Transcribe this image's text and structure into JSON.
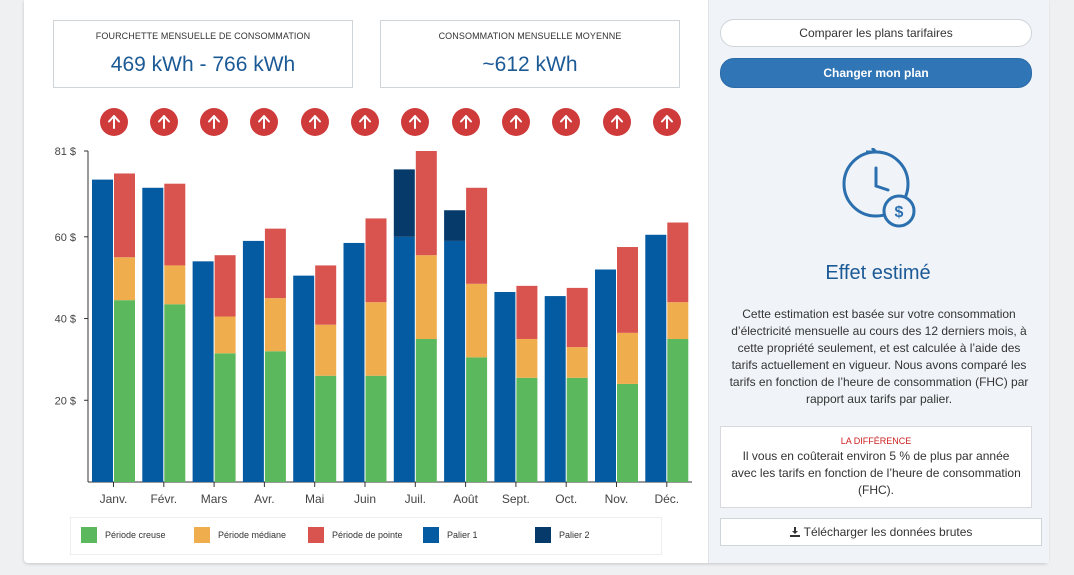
{
  "stats": {
    "range_label": "Fourchette mensuelle de consommation",
    "range_value": "469 kWh - 766 kWh",
    "avg_label": "Consommation mensuelle moyenne",
    "avg_value": "~612 kWh"
  },
  "colors": {
    "off_peak": "#5cb85c",
    "mid_peak": "#f0ad4e",
    "on_peak": "#d9534f",
    "tier1": "#045ba1",
    "tier2": "#053a6b",
    "accent": "#1c5a96",
    "arrow_badge": "#cf3b3b"
  },
  "chart_data": {
    "type": "bar",
    "title": "",
    "ylabel": "",
    "xlabel": "",
    "ylim": [
      0,
      81
    ],
    "yticks": [
      20,
      40,
      60,
      81
    ],
    "ytick_labels": [
      "20 $",
      "40 $",
      "60 $",
      "81 $"
    ],
    "categories": [
      "Janv.",
      "Févr.",
      "Mars",
      "Avr.",
      "Mai",
      "Juin",
      "Juil.",
      "Août",
      "Sept.",
      "Oct.",
      "Nov.",
      "Déc."
    ],
    "series_tiered": [
      {
        "name": "Palier 1",
        "values": [
          74,
          72,
          54,
          59,
          50.5,
          58.5,
          60,
          59,
          46.5,
          45.5,
          52,
          60.5
        ]
      },
      {
        "name": "Palier 2",
        "values": [
          0,
          0,
          0,
          0,
          0,
          0,
          16.5,
          7.5,
          0,
          0,
          0,
          0
        ]
      }
    ],
    "series_tou": [
      {
        "name": "Période creuse",
        "values": [
          44.5,
          43.5,
          31.5,
          32,
          26,
          26,
          35,
          30.5,
          25.5,
          25.5,
          24,
          35
        ]
      },
      {
        "name": "Période médiane",
        "values": [
          10.5,
          9.5,
          9,
          13,
          12.5,
          18,
          20.5,
          18,
          9.5,
          7.5,
          12.5,
          9
        ]
      },
      {
        "name": "Période de pointe",
        "values": [
          20.5,
          20,
          15,
          17,
          14.5,
          20.5,
          25.5,
          23.5,
          13,
          14.5,
          21,
          19.5
        ]
      }
    ],
    "increase_arrows": [
      true,
      true,
      true,
      true,
      true,
      true,
      true,
      true,
      true,
      true,
      true,
      true
    ]
  },
  "legend": [
    {
      "label": "Période creuse",
      "color": "#5cb85c"
    },
    {
      "label": "Période médiane",
      "color": "#f0ad4e"
    },
    {
      "label": "Période de pointe",
      "color": "#d9534f"
    },
    {
      "label": "Palier 1",
      "color": "#045ba1"
    },
    {
      "label": "Palier 2",
      "color": "#053a6b"
    }
  ],
  "actions": {
    "compare_label": "Comparer les plans tarifaires",
    "change_label": "Changer mon plan",
    "download_label": "Télécharger les données brutes"
  },
  "effect": {
    "title": "Effet estimé",
    "description": "Cette estimation est basée sur votre consommation d’électricité mensuelle au cours des 12 derniers mois, à cette propriété seulement, et est calculée à l’aide des tarifs actuellement en vigueur. Nous avons comparé les tarifs en fonction de l’heure de consommation (FHC) par rapport aux tarifs par palier.",
    "icon": "clock-dollar-icon"
  },
  "difference": {
    "label": "La différence",
    "text": "Il vous en coûterait environ 5 % de plus par année avec les tarifs en fonction de l’heure de consommation (FHC)."
  }
}
